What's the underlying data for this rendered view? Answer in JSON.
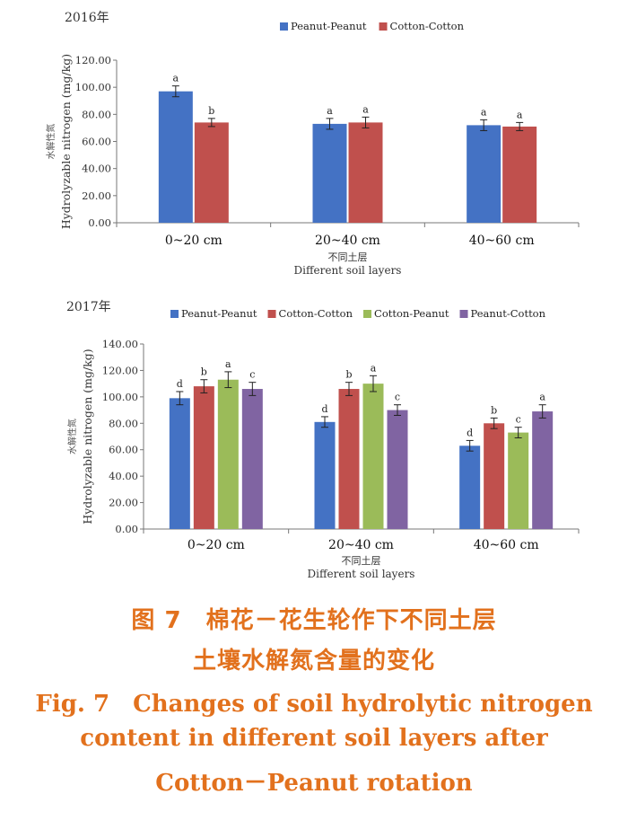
{
  "chart_data": [
    {
      "type": "bar",
      "title": "2016年",
      "ylabel_cn": "水解性氮",
      "ylabel": "Hydrolyzable nitrogen (mg/kg)",
      "xlabel_cn": "不同土层",
      "xlabel": "Different soil layers",
      "categories": [
        "0~20 cm",
        "20~40 cm",
        "40~60 cm"
      ],
      "ylim": [
        0,
        120
      ],
      "yticks": [
        "0.00",
        "20.00",
        "40.00",
        "60.00",
        "80.00",
        "100.00",
        "120.00"
      ],
      "legend": "top-center",
      "grid": false,
      "series": [
        {
          "name": "Peanut-Peanut",
          "color": "#4472c4",
          "values": [
            97,
            73,
            72
          ],
          "errors": [
            4,
            4,
            4
          ],
          "labels": [
            "a",
            "a",
            "a"
          ]
        },
        {
          "name": "Cotton-Cotton",
          "color": "#c0504d",
          "values": [
            74,
            74,
            71
          ],
          "errors": [
            3,
            4,
            3
          ],
          "labels": [
            "b",
            "a",
            "a"
          ]
        }
      ]
    },
    {
      "type": "bar",
      "title": "2017年",
      "ylabel_cn": "水解性氮",
      "ylabel": "Hydrolyzable nitrogen (mg/kg)",
      "xlabel_cn": "不同土层",
      "xlabel": "Different soil layers",
      "categories": [
        "0~20 cm",
        "20~40 cm",
        "40~60 cm"
      ],
      "ylim": [
        0,
        140
      ],
      "yticks": [
        "0.00",
        "20.00",
        "40.00",
        "60.00",
        "80.00",
        "100.00",
        "120.00",
        "140.00"
      ],
      "legend": "top-center",
      "grid": false,
      "series": [
        {
          "name": "Peanut-Peanut",
          "color": "#4472c4",
          "values": [
            99,
            81,
            63
          ],
          "errors": [
            5,
            4,
            4
          ],
          "labels": [
            "d",
            "d",
            "d"
          ]
        },
        {
          "name": "Cotton-Cotton",
          "color": "#c0504d",
          "values": [
            108,
            106,
            80
          ],
          "errors": [
            5,
            5,
            4
          ],
          "labels": [
            "b",
            "b",
            "b"
          ]
        },
        {
          "name": "Cotton-Peanut",
          "color": "#9bbb59",
          "values": [
            113,
            110,
            73
          ],
          "errors": [
            6,
            6,
            4
          ],
          "labels": [
            "a",
            "a",
            "c"
          ]
        },
        {
          "name": "Peanut-Cotton",
          "color": "#8064a2",
          "values": [
            106,
            90,
            89
          ],
          "errors": [
            5,
            4,
            5
          ],
          "labels": [
            "c",
            "c",
            "a"
          ]
        }
      ]
    }
  ],
  "caption": {
    "cn_line1": "图 7　棉花－花生轮作下不同土层",
    "cn_line2": "土壤水解氮含量的变化",
    "en_line1": "Fig. 7　Changes of soil hydrolytic nitrogen",
    "en_line2": "content in different soil layers after",
    "en_line3": "Cotton－Peanut rotation"
  }
}
